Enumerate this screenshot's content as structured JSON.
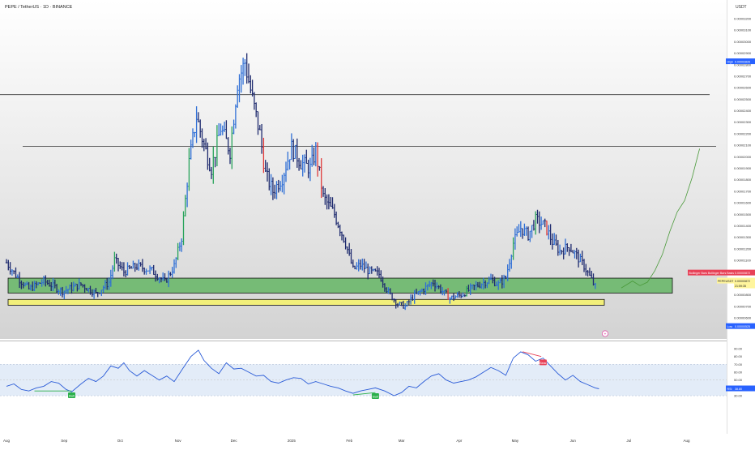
{
  "header": {
    "symbol_title": "PEPE / TetherUS · 1D · BINANCE"
  },
  "chart_data": [
    {
      "type": "candlestick",
      "price_axis": {
        "unit": "USDT",
        "ticks": [
          "0.00003200",
          "0.00003100",
          "0.00003000",
          "0.00002900",
          "0.00002800",
          "0.00002700",
          "0.00002600",
          "0.00002500",
          "0.00002400",
          "0.00002300",
          "0.00002200",
          "0.00002100",
          "0.00002000",
          "0.00001900",
          "0.00001800",
          "0.00001700",
          "0.00001600",
          "0.00001500",
          "0.00001400",
          "0.00001300",
          "0.00001200",
          "0.00001100",
          "0.00001000",
          "0.00000900",
          "0.00000800",
          "0.00000700",
          "0.00000600"
        ]
      },
      "time_axis": {
        "ticks": [
          {
            "label": "Aug",
            "day": 0
          },
          {
            "label": "Sep",
            "day": 31
          },
          {
            "label": "Oct",
            "day": 61
          },
          {
            "label": "Nov",
            "day": 92
          },
          {
            "label": "Dec",
            "day": 122
          },
          {
            "label": "2025",
            "day": 153
          },
          {
            "label": "Feb",
            "day": 184
          },
          {
            "label": "Mar",
            "day": 212
          },
          {
            "label": "Apr",
            "day": 243
          },
          {
            "label": "May",
            "day": 273
          },
          {
            "label": "Jun",
            "day": 304
          },
          {
            "label": "Jul",
            "day": 334
          },
          {
            "label": "Aug",
            "day": 365
          }
        ]
      },
      "markers": {
        "high": {
          "label": "High",
          "value": "0.00002826"
        },
        "low": {
          "label": "Low",
          "value": "0.00000525"
        },
        "bb": {
          "label": "Bollinger Bars Bollinger Bars Basis",
          "value": "0.00000872"
        },
        "symbol_tag": {
          "label": "PEPEUSDT",
          "value": "0.00000872",
          "countdown": "21:59:35"
        }
      },
      "levels": [
        {
          "name": "resistance-1",
          "price": 2.54e-05
        },
        {
          "name": "resistance-2",
          "price": 2.09e-05
        }
      ],
      "zones": [
        {
          "name": "green-demand-zone",
          "top": 9.45e-06,
          "bottom": 8.15e-06,
          "color": "#76bb76"
        },
        {
          "name": "yellow-support-zone",
          "top": 7.6e-06,
          "bottom": 7.1e-06,
          "color": "#f2ef7a"
        }
      ],
      "projection": [
        [
          330,
          8.6e-06
        ],
        [
          336,
          9.2e-06
        ],
        [
          340,
          8.8e-06
        ],
        [
          344,
          9.1e-06
        ],
        [
          348,
          1.01e-05
        ],
        [
          352,
          1.15e-05
        ],
        [
          356,
          1.35e-05
        ],
        [
          360,
          1.52e-05
        ],
        [
          364,
          1.62e-05
        ],
        [
          368,
          1.82e-05
        ],
        [
          372,
          2.07e-05
        ]
      ],
      "price_path": [
        [
          0,
          1.08e-05
        ],
        [
          6,
          9.5e-06
        ],
        [
          12,
          8.5e-06
        ],
        [
          20,
          9.2e-06
        ],
        [
          30,
          8.3e-06
        ],
        [
          40,
          8.9e-06
        ],
        [
          48,
          8.1e-06
        ],
        [
          55,
          9.1e-06
        ],
        [
          58,
          1.1e-05
        ],
        [
          63,
          1e-05
        ],
        [
          70,
          1.05e-05
        ],
        [
          78,
          1.01e-05
        ],
        [
          85,
          9.1e-06
        ],
        [
          90,
          1.05e-05
        ],
        [
          94,
          1.3e-05
        ],
        [
          98,
          1.95e-05
        ],
        [
          102,
          2.35e-05
        ],
        [
          106,
          2.1e-05
        ],
        [
          110,
          1.9e-05
        ],
        [
          115,
          2.25e-05
        ],
        [
          120,
          2.05e-05
        ],
        [
          124,
          2.65e-05
        ],
        [
          128,
          2.82e-05
        ],
        [
          132,
          2.5e-05
        ],
        [
          136,
          2.2e-05
        ],
        [
          139,
          1.85e-05
        ],
        [
          143,
          1.7e-05
        ],
        [
          148,
          1.82e-05
        ],
        [
          153,
          2.08e-05
        ],
        [
          158,
          1.95e-05
        ],
        [
          163,
          1.9e-05
        ],
        [
          166,
          2.05e-05
        ],
        [
          170,
          1.65e-05
        ],
        [
          176,
          1.5e-05
        ],
        [
          182,
          1.25e-05
        ],
        [
          186,
          1.02e-05
        ],
        [
          190,
          1.06e-05
        ],
        [
          195,
          1e-05
        ],
        [
          200,
          9.8e-06
        ],
        [
          205,
          8.2e-06
        ],
        [
          210,
          7.2e-06
        ],
        [
          214,
          7e-06
        ],
        [
          218,
          7.8e-06
        ],
        [
          224,
          8.5e-06
        ],
        [
          229,
          9.1e-06
        ],
        [
          234,
          8.3e-06
        ],
        [
          238,
          7.7e-06
        ],
        [
          244,
          8e-06
        ],
        [
          250,
          8.6e-06
        ],
        [
          255,
          9e-06
        ],
        [
          260,
          9.3e-06
        ],
        [
          264,
          8.9e-06
        ],
        [
          268,
          9.5e-06
        ],
        [
          272,
          1.25e-05
        ],
        [
          276,
          1.38e-05
        ],
        [
          280,
          1.32e-05
        ],
        [
          284,
          1.45e-05
        ],
        [
          289,
          1.4e-05
        ],
        [
          293,
          1.26e-05
        ],
        [
          297,
          1.18e-05
        ],
        [
          302,
          1.22e-05
        ],
        [
          306,
          1.14e-05
        ],
        [
          310,
          1.05e-05
        ],
        [
          314,
          9.3e-06
        ],
        [
          316,
          8.7e-06
        ]
      ]
    },
    {
      "type": "line",
      "name": "RSI",
      "axis_ticks": [
        "90.00",
        "80.00",
        "70.00",
        "60.00",
        "50.00",
        "40.00",
        "30.00"
      ],
      "band": [
        30,
        70
      ],
      "midline": 50,
      "last": {
        "label": "RSI",
        "value": "38.80"
      },
      "signals": [
        {
          "label": "Bull",
          "day": 35,
          "value": 30
        },
        {
          "label": "Bull",
          "day": 198,
          "value": 29
        },
        {
          "label": "Bear",
          "day": 288,
          "value": 72
        }
      ],
      "divergence_lines": [
        {
          "kind": "bull",
          "from": [
            15,
            36
          ],
          "to": [
            35,
            36
          ],
          "color": "#2bb04a"
        },
        {
          "kind": "bull",
          "from": [
            186,
            31
          ],
          "to": [
            198,
            34
          ],
          "color": "#2bb04a"
        },
        {
          "kind": "bear",
          "from": [
            277,
            86
          ],
          "to": [
            287,
            80
          ],
          "color": "#e84157"
        }
      ],
      "path": [
        [
          0,
          42
        ],
        [
          4,
          45
        ],
        [
          8,
          38
        ],
        [
          12,
          36
        ],
        [
          16,
          40
        ],
        [
          20,
          42
        ],
        [
          24,
          48
        ],
        [
          28,
          46
        ],
        [
          32,
          38
        ],
        [
          35,
          35
        ],
        [
          40,
          45
        ],
        [
          44,
          52
        ],
        [
          48,
          48
        ],
        [
          52,
          55
        ],
        [
          56,
          68
        ],
        [
          60,
          65
        ],
        [
          63,
          72
        ],
        [
          66,
          62
        ],
        [
          70,
          55
        ],
        [
          74,
          62
        ],
        [
          78,
          56
        ],
        [
          82,
          50
        ],
        [
          86,
          55
        ],
        [
          90,
          48
        ],
        [
          95,
          66
        ],
        [
          99,
          80
        ],
        [
          103,
          88
        ],
        [
          106,
          75
        ],
        [
          110,
          65
        ],
        [
          114,
          58
        ],
        [
          118,
          72
        ],
        [
          122,
          64
        ],
        [
          126,
          65
        ],
        [
          130,
          60
        ],
        [
          134,
          55
        ],
        [
          138,
          56
        ],
        [
          142,
          48
        ],
        [
          146,
          46
        ],
        [
          150,
          50
        ],
        [
          154,
          53
        ],
        [
          158,
          52
        ],
        [
          162,
          45
        ],
        [
          166,
          48
        ],
        [
          170,
          45
        ],
        [
          174,
          42
        ],
        [
          178,
          40
        ],
        [
          182,
          36
        ],
        [
          186,
          33
        ],
        [
          190,
          36
        ],
        [
          194,
          38
        ],
        [
          198,
          40
        ],
        [
          203,
          36
        ],
        [
          208,
          30
        ],
        [
          212,
          34
        ],
        [
          216,
          42
        ],
        [
          220,
          40
        ],
        [
          224,
          48
        ],
        [
          228,
          55
        ],
        [
          232,
          58
        ],
        [
          236,
          50
        ],
        [
          240,
          46
        ],
        [
          244,
          48
        ],
        [
          248,
          50
        ],
        [
          252,
          54
        ],
        [
          256,
          60
        ],
        [
          260,
          66
        ],
        [
          264,
          62
        ],
        [
          268,
          56
        ],
        [
          272,
          78
        ],
        [
          276,
          86
        ],
        [
          280,
          82
        ],
        [
          284,
          74
        ],
        [
          288,
          78
        ],
        [
          292,
          68
        ],
        [
          296,
          58
        ],
        [
          300,
          50
        ],
        [
          304,
          56
        ],
        [
          308,
          48
        ],
        [
          312,
          44
        ],
        [
          316,
          40
        ],
        [
          318,
          38.8
        ]
      ]
    }
  ]
}
